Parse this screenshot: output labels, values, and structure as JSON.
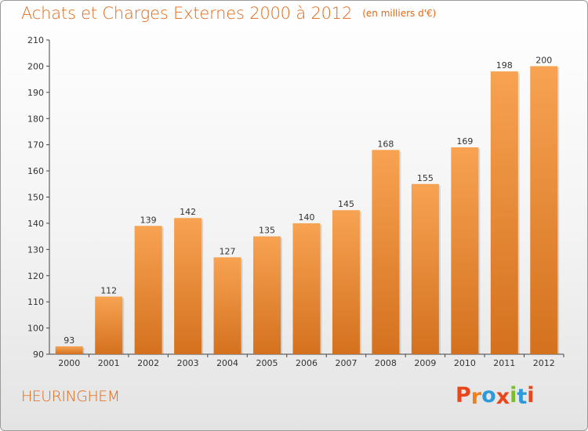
{
  "chart_data": {
    "type": "bar",
    "title": "Achats et Charges Externes 2000 à 2012",
    "subtitle": "(en milliers d'€)",
    "categories": [
      "2000",
      "2001",
      "2002",
      "2003",
      "2004",
      "2005",
      "2006",
      "2007",
      "2008",
      "2009",
      "2010",
      "2011",
      "2012"
    ],
    "values": [
      93,
      112,
      139,
      142,
      127,
      135,
      140,
      145,
      168,
      155,
      169,
      198,
      200
    ],
    "ylim": [
      90,
      210
    ],
    "yticks": [
      90,
      100,
      110,
      120,
      130,
      140,
      150,
      160,
      170,
      180,
      190,
      200,
      210
    ],
    "grid": false,
    "legend": "none",
    "bar_color_top": "#f7a352",
    "bar_color_bottom": "#d4711e"
  },
  "footer": {
    "commune": "HEURINGHEM",
    "brand": [
      "P",
      "r",
      "o",
      "x",
      "i",
      "t",
      "i"
    ],
    "brand_colors": [
      "#e8461c",
      "#f07f1c",
      "#2e9ad8",
      "#e8461c",
      "#7cbd2a",
      "#2e9ad8",
      "#e8461c"
    ]
  },
  "colors": {
    "accent": "#e06a1a"
  }
}
